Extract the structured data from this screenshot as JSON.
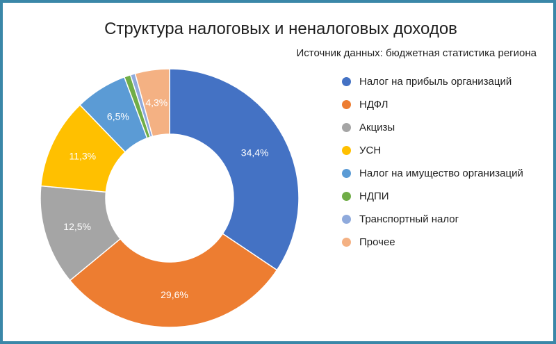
{
  "chart_data": {
    "type": "pie",
    "title": "Структура налоговых и неналоговых доходов",
    "subtitle": "Источник данных: бюджетная статистика региона",
    "legend_position": "right",
    "donut": true,
    "categories": [
      "Налог на прибыль организаций",
      "НДФЛ",
      "Акцизы",
      "УСН",
      "Налог на имущество организаций",
      "НДПИ",
      "Транспортный налог",
      "Прочее"
    ],
    "values": [
      34.4,
      29.6,
      12.5,
      11.3,
      6.5,
      0.8,
      0.6,
      4.3
    ],
    "labels": [
      "34,4%",
      "29,6%",
      "12,5%",
      "11,3%",
      "6,5%",
      "",
      "",
      "4,3%"
    ],
    "colors": [
      "#4472c4",
      "#ed7d31",
      "#a5a5a5",
      "#ffc000",
      "#5b9bd5",
      "#70ad47",
      "#8faadc",
      "#f4b183"
    ]
  }
}
